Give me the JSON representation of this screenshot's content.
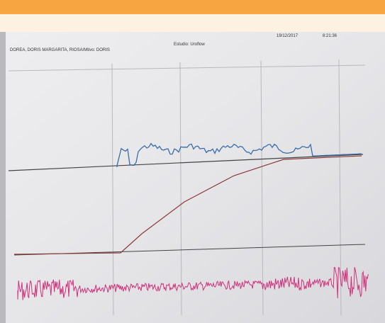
{
  "header": {
    "patient": "DOREA, DORIS MARGARITA, RIOSA/Mtivo: DORIS",
    "study": "Estudio: Uroflow",
    "date": "19/12/2017",
    "time": "8:21:36"
  }
}
